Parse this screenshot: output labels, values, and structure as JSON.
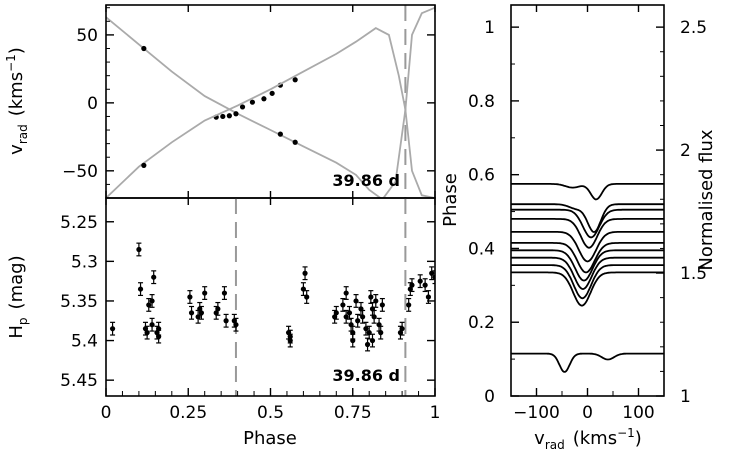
{
  "chart_data": [
    {
      "type": "line",
      "panel": "radial-velocity-curve",
      "ylabel": "v_rad (kms^-1)",
      "ylabel_parts": {
        "main": "v",
        "sub": "rad",
        "unit": "(kms",
        "sup": "−1",
        "close": ")"
      },
      "xlim": [
        0,
        1
      ],
      "ylim": [
        -70,
        72
      ],
      "yticks": [
        "50",
        "0",
        "−50"
      ],
      "ytick_values": [
        50,
        0,
        -50
      ],
      "annotation": "39.86 d",
      "vline_phase": 0.91,
      "series": [
        {
          "values": [
            [
              0.115,
              40
            ],
            [
              0.335,
              -10.5
            ],
            [
              0.355,
              -10
            ],
            [
              0.375,
              -9.5
            ],
            [
              0.395,
              -8
            ],
            [
              0.415,
              -3
            ],
            [
              0.445,
              0.5
            ],
            [
              0.48,
              3
            ],
            [
              0.505,
              7
            ],
            [
              0.53,
              13
            ],
            [
              0.575,
              17
            ]
          ],
          "model": [
            [
              0.0,
              63
            ],
            [
              0.1,
              43
            ],
            [
              0.2,
              23
            ],
            [
              0.3,
              5
            ],
            [
              0.4,
              -8
            ],
            [
              0.5,
              -20
            ],
            [
              0.6,
              -32
            ],
            [
              0.7,
              -44
            ],
            [
              0.76,
              -53
            ],
            [
              0.8,
              -64
            ],
            [
              0.84,
              -71
            ],
            [
              0.88,
              -58
            ],
            [
              0.91,
              -5
            ],
            [
              0.93,
              50
            ],
            [
              0.96,
              66
            ],
            [
              1.0,
              70
            ]
          ]
        },
        {
          "values": [
            [
              0.115,
              -46
            ],
            [
              0.53,
              -23
            ],
            [
              0.575,
              -29
            ]
          ],
          "model": [
            [
              0.0,
              -70
            ],
            [
              0.1,
              -47
            ],
            [
              0.2,
              -29
            ],
            [
              0.3,
              -13
            ],
            [
              0.4,
              -2
            ],
            [
              0.5,
              10
            ],
            [
              0.6,
              23
            ],
            [
              0.7,
              36
            ],
            [
              0.76,
              45
            ],
            [
              0.82,
              55
            ],
            [
              0.86,
              50
            ],
            [
              0.89,
              20
            ],
            [
              0.91,
              -5
            ],
            [
              0.93,
              -50
            ],
            [
              0.96,
              -68
            ],
            [
              1.0,
              -70
            ]
          ]
        }
      ]
    },
    {
      "type": "scatter",
      "panel": "hipparcos-photometry",
      "xlabel": "Phase",
      "ylabel": "H_p (mag)",
      "ylabel_parts": {
        "main": "H",
        "sub": "p",
        "unit": "(mag)"
      },
      "xlim": [
        0,
        1
      ],
      "ylim": [
        5.47,
        5.22
      ],
      "xticks": [
        "0",
        "0.25",
        "0.5",
        "0.75",
        "1"
      ],
      "xtick_values": [
        0,
        0.25,
        0.5,
        0.75,
        1
      ],
      "yticks": [
        "5.25",
        "5.3",
        "5.35",
        "5.4",
        "5.45"
      ],
      "ytick_values": [
        5.25,
        5.3,
        5.35,
        5.4,
        5.45
      ],
      "annotation": "39.86 d",
      "vline_phases": [
        0.395,
        0.91
      ],
      "error_mag": 0.008,
      "points": [
        [
          0.02,
          5.385
        ],
        [
          0.1,
          5.285
        ],
        [
          0.105,
          5.335
        ],
        [
          0.12,
          5.385
        ],
        [
          0.125,
          5.39
        ],
        [
          0.13,
          5.355
        ],
        [
          0.14,
          5.35
        ],
        [
          0.14,
          5.38
        ],
        [
          0.145,
          5.32
        ],
        [
          0.155,
          5.39
        ],
        [
          0.16,
          5.385
        ],
        [
          0.16,
          5.395
        ],
        [
          0.255,
          5.345
        ],
        [
          0.26,
          5.365
        ],
        [
          0.28,
          5.37
        ],
        [
          0.285,
          5.36
        ],
        [
          0.29,
          5.365
        ],
        [
          0.3,
          5.34
        ],
        [
          0.335,
          5.365
        ],
        [
          0.34,
          5.36
        ],
        [
          0.36,
          5.34
        ],
        [
          0.365,
          5.375
        ],
        [
          0.39,
          5.375
        ],
        [
          0.395,
          5.38
        ],
        [
          0.555,
          5.39
        ],
        [
          0.56,
          5.395
        ],
        [
          0.56,
          5.4
        ],
        [
          0.6,
          5.335
        ],
        [
          0.605,
          5.315
        ],
        [
          0.61,
          5.345
        ],
        [
          0.695,
          5.37
        ],
        [
          0.7,
          5.365
        ],
        [
          0.72,
          5.355
        ],
        [
          0.73,
          5.34
        ],
        [
          0.73,
          5.37
        ],
        [
          0.74,
          5.365
        ],
        [
          0.745,
          5.38
        ],
        [
          0.75,
          5.39
        ],
        [
          0.75,
          5.4
        ],
        [
          0.76,
          5.35
        ],
        [
          0.765,
          5.375
        ],
        [
          0.775,
          5.36
        ],
        [
          0.78,
          5.37
        ],
        [
          0.79,
          5.385
        ],
        [
          0.795,
          5.405
        ],
        [
          0.8,
          5.39
        ],
        [
          0.805,
          5.345
        ],
        [
          0.81,
          5.36
        ],
        [
          0.81,
          5.4
        ],
        [
          0.815,
          5.37
        ],
        [
          0.82,
          5.35
        ],
        [
          0.83,
          5.38
        ],
        [
          0.835,
          5.39
        ],
        [
          0.84,
          5.355
        ],
        [
          0.895,
          5.39
        ],
        [
          0.9,
          5.385
        ],
        [
          0.92,
          5.355
        ],
        [
          0.925,
          5.335
        ],
        [
          0.93,
          5.33
        ],
        [
          0.955,
          5.325
        ],
        [
          0.97,
          5.33
        ],
        [
          0.98,
          5.345
        ],
        [
          0.99,
          5.315
        ],
        [
          1.0,
          5.32
        ]
      ]
    },
    {
      "type": "line",
      "panel": "line-profiles",
      "xlabel": "v_rad (kms^-1)",
      "xlabel_parts": {
        "main": "v",
        "sub": "rad",
        "unit": "(kms",
        "sup": "−1",
        "close": ")"
      },
      "ylabel_left": "Phase",
      "ylabel_right": "Normalised flux",
      "xlim": [
        -150,
        150
      ],
      "ylim": [
        0,
        1.06
      ],
      "xticks": [
        "−100",
        "0",
        "100"
      ],
      "xtick_values": [
        -100,
        0,
        100
      ],
      "yticks": [
        "0",
        "0.2",
        "0.4",
        "0.6",
        "0.8",
        "1"
      ],
      "ytick_values": [
        0,
        0.2,
        0.4,
        0.6,
        0.8,
        1
      ],
      "yticks_right": [
        "1",
        "1.5",
        "2",
        "2.5"
      ],
      "ytick_right_values": [
        1,
        1.5,
        2,
        2.5
      ],
      "right_axis_range": [
        1.0,
        2.59
      ],
      "profiles": [
        {
          "phase": 0.575,
          "components": [
            {
              "v": 17,
              "depth": 0.042,
              "width": 11
            },
            {
              "v": -29,
              "depth": 0.01,
              "width": 14
            }
          ]
        },
        {
          "phase": 0.52,
          "components": [
            {
              "v": 13,
              "depth": 0.075,
              "width": 13
            },
            {
              "v": -22,
              "depth": 0.012,
              "width": 14
            }
          ]
        },
        {
          "phase": 0.505,
          "components": [
            {
              "v": 7,
              "depth": 0.075,
              "width": 16
            }
          ]
        },
        {
          "phase": 0.48,
          "components": [
            {
              "v": 3,
              "depth": 0.078,
              "width": 16
            }
          ]
        },
        {
          "phase": 0.445,
          "components": [
            {
              "v": 0,
              "depth": 0.08,
              "width": 17
            }
          ]
        },
        {
          "phase": 0.415,
          "components": [
            {
              "v": -3,
              "depth": 0.08,
              "width": 17
            }
          ]
        },
        {
          "phase": 0.395,
          "components": [
            {
              "v": -7,
              "depth": 0.082,
              "width": 17
            }
          ]
        },
        {
          "phase": 0.375,
          "components": [
            {
              "v": -9,
              "depth": 0.085,
              "width": 17
            }
          ]
        },
        {
          "phase": 0.355,
          "components": [
            {
              "v": -10,
              "depth": 0.09,
              "width": 17
            }
          ]
        },
        {
          "phase": 0.335,
          "components": [
            {
              "v": -11,
              "depth": 0.09,
              "width": 17
            }
          ]
        },
        {
          "phase": 0.115,
          "components": [
            {
              "v": -45,
              "depth": 0.05,
              "width": 10
            },
            {
              "v": 40,
              "depth": 0.016,
              "width": 12
            }
          ]
        }
      ]
    }
  ]
}
